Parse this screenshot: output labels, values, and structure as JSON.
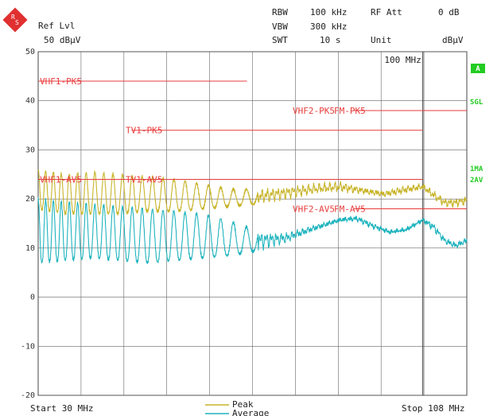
{
  "header": {
    "ref_lvl_label": "Ref Lvl",
    "ref_lvl_value": "50 dBµV",
    "rbw_label": "RBW",
    "rbw_value": "100 kHz",
    "vbw_label": "VBW",
    "vbw_value": "300 kHz",
    "swt_label": "SWT",
    "swt_value": "10 s",
    "rf_att_label": "RF Att",
    "rf_att_value": "0 dB",
    "unit_label": "Unit",
    "unit_value": "dBµV",
    "marker_freq": "100 MHz"
  },
  "side_labels": {
    "a": "A",
    "sgl": "SGL",
    "ma1": "1MA",
    "av2": "2AV"
  },
  "footer": {
    "start": "Start 30 MHz",
    "stop": "Stop 108 MHz"
  },
  "colors": {
    "peak": "#c8b42a",
    "average": "#1fb4be",
    "limit": "#e83c3c",
    "status_green": "#22cc22",
    "grid": "#444444"
  },
  "chart_data": {
    "type": "line",
    "x_range_mhz": [
      30,
      108
    ],
    "ylim": [
      -20,
      50
    ],
    "ylabel": "dBµV",
    "y_ticks": [
      50,
      40,
      30,
      20,
      10,
      0,
      -10,
      -20
    ],
    "grid": true,
    "legend_position": "bottom-center",
    "marker_line_mhz": 100,
    "limit_lines": [
      {
        "label": "VHF1-PK5",
        "x": [
          30,
          68
        ],
        "y": 44
      },
      {
        "label": "VHF1-AV5",
        "x": [
          30,
          68
        ],
        "y": 24
      },
      {
        "label": "TV1-PK5",
        "x": [
          47,
          100
        ],
        "y": 34
      },
      {
        "label": "TV1-AV5",
        "x": [
          47,
          100
        ],
        "y": 24
      },
      {
        "label": "VHF2-PK5",
        "x": [
          87.5,
          108
        ],
        "y": 38
      },
      {
        "label": "FM-PK5",
        "x": [
          87.5,
          108
        ],
        "y": 38
      },
      {
        "label": "VHF2-AV5",
        "x": [
          87.5,
          108
        ],
        "y": 18
      },
      {
        "label": "FM-AV5",
        "x": [
          87.5,
          108
        ],
        "y": 18
      }
    ],
    "series": [
      {
        "name": "Peak",
        "env_freq_mhz": [
          30,
          35,
          40,
          45,
          50,
          55,
          60,
          65,
          70,
          75,
          80,
          85,
          90,
          93,
          96,
          100,
          102,
          104,
          106,
          108
        ],
        "env_upper": [
          26,
          25,
          25.5,
          25,
          24.5,
          24,
          23,
          22,
          22,
          22.5,
          23,
          23.5,
          22,
          21.5,
          22.5,
          23,
          21.5,
          20,
          20,
          20.5
        ],
        "env_lower": [
          18,
          17,
          17,
          17,
          17.5,
          17.5,
          18,
          18.5,
          19,
          20,
          21,
          21.5,
          21,
          20.5,
          21,
          22,
          20,
          18.5,
          18.5,
          19
        ],
        "oscillation_until_mhz": 70
      },
      {
        "name": "Average",
        "env_freq_mhz": [
          30,
          35,
          40,
          45,
          50,
          55,
          60,
          65,
          70,
          75,
          80,
          85,
          88,
          91,
          94,
          97,
          100,
          102,
          104,
          106,
          108
        ],
        "env_upper": [
          20,
          19.5,
          19,
          18.5,
          18,
          17.5,
          17,
          15.5,
          13.5,
          13,
          14.5,
          16,
          16.5,
          15,
          13.5,
          14,
          16,
          15,
          12,
          11,
          12
        ],
        "env_lower": [
          7,
          7.5,
          8,
          7.5,
          7,
          7.5,
          8,
          8.5,
          9.5,
          11,
          13.5,
          15.5,
          15.5,
          14,
          13,
          13.5,
          15.5,
          13.5,
          11,
          10,
          11
        ],
        "oscillation_until_mhz": 70
      }
    ]
  }
}
